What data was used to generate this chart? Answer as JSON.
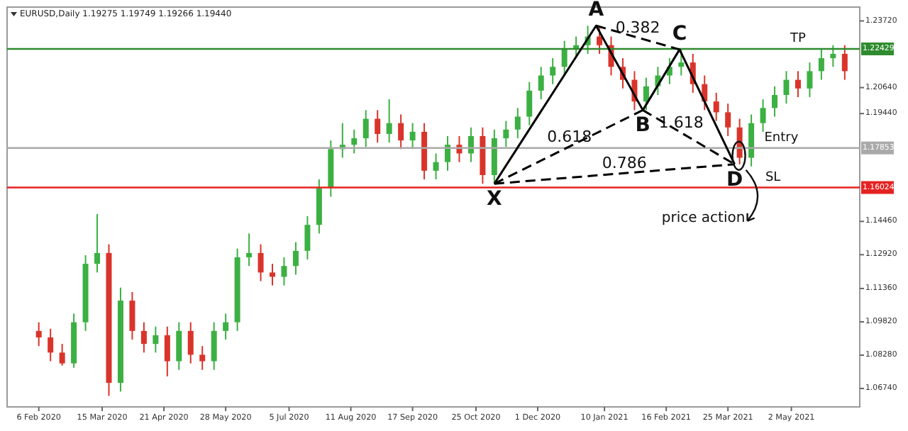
{
  "chart_data": {
    "type": "candlestick",
    "title": "EURUSD,Daily  1.19275 1.19749 1.19266 1.19440",
    "x": [
      "2020-02-06",
      "2020-02-13",
      "2020-02-20",
      "2020-02-27",
      "2020-03-05",
      "2020-03-12",
      "2020-03-19",
      "2020-03-26",
      "2020-04-02",
      "2020-04-09",
      "2020-04-16",
      "2020-04-23",
      "2020-04-30",
      "2020-05-07",
      "2020-05-14",
      "2020-05-21",
      "2020-05-28",
      "2020-06-04",
      "2020-06-11",
      "2020-06-18",
      "2020-06-25",
      "2020-07-02",
      "2020-07-09",
      "2020-07-16",
      "2020-07-23",
      "2020-07-30",
      "2020-08-06",
      "2020-08-13",
      "2020-08-20",
      "2020-08-27",
      "2020-09-03",
      "2020-09-10",
      "2020-09-17",
      "2020-09-24",
      "2020-10-01",
      "2020-10-08",
      "2020-10-15",
      "2020-10-22",
      "2020-10-29",
      "2020-11-05",
      "2020-11-12",
      "2020-11-19",
      "2020-11-26",
      "2020-12-03",
      "2020-12-10",
      "2020-12-17",
      "2020-12-24",
      "2020-12-31",
      "2021-01-07",
      "2021-01-14",
      "2021-01-21",
      "2021-01-28",
      "2021-02-04",
      "2021-02-11",
      "2021-02-18",
      "2021-02-25",
      "2021-03-04",
      "2021-03-11",
      "2021-03-18",
      "2021-03-25",
      "2021-04-01",
      "2021-04-08",
      "2021-04-15",
      "2021-04-22",
      "2021-04-29",
      "2021-05-06",
      "2021-05-13",
      "2021-05-20",
      "2021-05-27",
      "2021-06-03"
    ],
    "ohlc": [
      [
        1.094,
        1.098,
        1.087,
        1.091
      ],
      [
        1.091,
        1.095,
        1.08,
        1.084
      ],
      [
        1.084,
        1.088,
        1.078,
        1.079
      ],
      [
        1.079,
        1.102,
        1.077,
        1.098
      ],
      [
        1.098,
        1.129,
        1.094,
        1.125
      ],
      [
        1.125,
        1.148,
        1.121,
        1.13
      ],
      [
        1.13,
        1.134,
        1.064,
        1.07
      ],
      [
        1.07,
        1.114,
        1.066,
        1.108
      ],
      [
        1.108,
        1.112,
        1.09,
        1.094
      ],
      [
        1.094,
        1.098,
        1.084,
        1.088
      ],
      [
        1.088,
        1.096,
        1.084,
        1.092
      ],
      [
        1.092,
        1.096,
        1.073,
        1.08
      ],
      [
        1.08,
        1.098,
        1.076,
        1.094
      ],
      [
        1.094,
        1.098,
        1.079,
        1.083
      ],
      [
        1.083,
        1.087,
        1.076,
        1.08
      ],
      [
        1.08,
        1.098,
        1.076,
        1.094
      ],
      [
        1.094,
        1.102,
        1.09,
        1.098
      ],
      [
        1.098,
        1.132,
        1.094,
        1.128
      ],
      [
        1.128,
        1.139,
        1.124,
        1.13
      ],
      [
        1.13,
        1.134,
        1.117,
        1.121
      ],
      [
        1.121,
        1.125,
        1.115,
        1.119
      ],
      [
        1.119,
        1.128,
        1.115,
        1.124
      ],
      [
        1.124,
        1.135,
        1.12,
        1.131
      ],
      [
        1.131,
        1.147,
        1.127,
        1.143
      ],
      [
        1.143,
        1.164,
        1.139,
        1.16
      ],
      [
        1.16,
        1.182,
        1.156,
        1.178
      ],
      [
        1.178,
        1.19,
        1.174,
        1.18
      ],
      [
        1.18,
        1.187,
        1.176,
        1.183
      ],
      [
        1.183,
        1.196,
        1.179,
        1.192
      ],
      [
        1.192,
        1.196,
        1.181,
        1.185
      ],
      [
        1.185,
        1.201,
        1.181,
        1.19
      ],
      [
        1.19,
        1.194,
        1.178,
        1.182
      ],
      [
        1.182,
        1.19,
        1.178,
        1.186
      ],
      [
        1.186,
        1.19,
        1.164,
        1.168
      ],
      [
        1.168,
        1.176,
        1.164,
        1.172
      ],
      [
        1.172,
        1.184,
        1.168,
        1.18
      ],
      [
        1.18,
        1.184,
        1.172,
        1.176
      ],
      [
        1.176,
        1.188,
        1.172,
        1.184
      ],
      [
        1.184,
        1.188,
        1.162,
        1.166
      ],
      [
        1.166,
        1.187,
        1.162,
        1.183
      ],
      [
        1.183,
        1.191,
        1.179,
        1.187
      ],
      [
        1.187,
        1.197,
        1.183,
        1.193
      ],
      [
        1.193,
        1.209,
        1.189,
        1.205
      ],
      [
        1.205,
        1.216,
        1.201,
        1.212
      ],
      [
        1.212,
        1.22,
        1.208,
        1.216
      ],
      [
        1.216,
        1.228,
        1.212,
        1.224
      ],
      [
        1.224,
        1.23,
        1.22,
        1.226
      ],
      [
        1.226,
        1.235,
        1.222,
        1.23
      ],
      [
        1.23,
        1.234,
        1.222,
        1.226
      ],
      [
        1.226,
        1.23,
        1.212,
        1.216
      ],
      [
        1.216,
        1.22,
        1.206,
        1.21
      ],
      [
        1.21,
        1.214,
        1.196,
        1.2
      ],
      [
        1.2,
        1.211,
        1.196,
        1.207
      ],
      [
        1.207,
        1.216,
        1.203,
        1.212
      ],
      [
        1.212,
        1.22,
        1.208,
        1.216
      ],
      [
        1.216,
        1.224,
        1.212,
        1.218
      ],
      [
        1.218,
        1.222,
        1.204,
        1.208
      ],
      [
        1.208,
        1.212,
        1.196,
        1.2
      ],
      [
        1.2,
        1.204,
        1.191,
        1.195
      ],
      [
        1.195,
        1.199,
        1.184,
        1.188
      ],
      [
        1.188,
        1.192,
        1.171,
        1.174
      ],
      [
        1.174,
        1.194,
        1.17,
        1.19
      ],
      [
        1.19,
        1.201,
        1.186,
        1.197
      ],
      [
        1.197,
        1.207,
        1.193,
        1.203
      ],
      [
        1.203,
        1.214,
        1.199,
        1.21
      ],
      [
        1.21,
        1.214,
        1.202,
        1.206
      ],
      [
        1.206,
        1.218,
        1.202,
        1.214
      ],
      [
        1.214,
        1.224,
        1.21,
        1.22
      ],
      [
        1.22,
        1.226,
        1.216,
        1.222
      ],
      [
        1.222,
        1.226,
        1.21,
        1.214
      ]
    ],
    "series": [
      {
        "type": "line",
        "x": [
          "2020-11-05",
          "2021-01-05",
          "2021-02-02",
          "2021-02-24",
          "2021-03-29"
        ],
        "values": [
          1.162,
          1.235,
          1.196,
          1.224,
          1.171
        ],
        "color": "#000000",
        "line_style": "solid"
      },
      {
        "type": "line",
        "x": [
          "2020-11-05",
          "2021-02-02"
        ],
        "values": [
          1.162,
          1.196
        ],
        "color": "#000000",
        "line_style": "dashed"
      },
      {
        "type": "line",
        "x": [
          "2021-01-05",
          "2021-02-24"
        ],
        "values": [
          1.235,
          1.224
        ],
        "color": "#000000",
        "line_style": "dashed"
      },
      {
        "type": "line",
        "x": [
          "2021-02-02",
          "2021-03-29"
        ],
        "values": [
          1.196,
          1.171
        ],
        "color": "#000000",
        "line_style": "dashed"
      },
      {
        "type": "line",
        "x": [
          "2020-11-05",
          "2021-03-29"
        ],
        "values": [
          1.162,
          1.171
        ],
        "color": "#000000",
        "line_style": "dashed"
      }
    ],
    "xlim": [
      "2020-01-18",
      "2021-06-12"
    ],
    "xticks": [
      {
        "value": "2020-02-06",
        "label": "6 Feb 2020"
      },
      {
        "value": "2020-03-15",
        "label": "15 Mar 2020"
      },
      {
        "value": "2020-04-21",
        "label": "21 Apr 2020"
      },
      {
        "value": "2020-05-28",
        "label": "28 May 2020"
      },
      {
        "value": "2020-07-05",
        "label": "5 Jul 2020"
      },
      {
        "value": "2020-08-11",
        "label": "11 Aug 2020"
      },
      {
        "value": "2020-09-17",
        "label": "17 Sep 2020"
      },
      {
        "value": "2020-10-25",
        "label": "25 Oct 2020"
      },
      {
        "value": "2020-12-01",
        "label": "1 Dec 2020"
      },
      {
        "value": "2021-01-10",
        "label": "10 Jan 2021"
      },
      {
        "value": "2021-02-16",
        "label": "16 Feb 2021"
      },
      {
        "value": "2021-03-25",
        "label": "25 Mar 2021"
      },
      {
        "value": "2021-05-02",
        "label": "2 May 2021"
      }
    ],
    "ylim": [
      1.0589,
      1.2436
    ],
    "yticks": [
      {
        "value": 1.2372,
        "label": "1.23720"
      },
      {
        "value": 1.2064,
        "label": "1.20640"
      },
      {
        "value": 1.1944,
        "label": "1.19440"
      },
      {
        "value": 1.1446,
        "label": "1.14460"
      },
      {
        "value": 1.1292,
        "label": "1.12920"
      },
      {
        "value": 1.1136,
        "label": "1.11360"
      },
      {
        "value": 1.0982,
        "label": "1.09820"
      },
      {
        "value": 1.0828,
        "label": "1.08280"
      },
      {
        "value": 1.0674,
        "label": "1.06740"
      }
    ],
    "ref_lines": [
      {
        "axis": "y",
        "value": 1.22429,
        "label": "1.22429",
        "color": "#2e8b2e"
      },
      {
        "axis": "y",
        "value": 1.17853,
        "label": "1.17853",
        "color": "#a9a9a9"
      },
      {
        "axis": "y",
        "value": 1.16024,
        "label": "1.16024",
        "color": "#e52222"
      }
    ],
    "annotations": [
      {
        "text": "X",
        "x": "2020-11-05",
        "y": 1.162
      },
      {
        "text": "A",
        "x": "2021-01-05",
        "y": 1.235
      },
      {
        "text": "B",
        "x": "2021-02-02",
        "y": 1.196
      },
      {
        "text": "C",
        "x": "2021-02-24",
        "y": 1.224
      },
      {
        "text": "D",
        "x": "2021-03-29",
        "y": 1.171
      },
      {
        "text": "0.382",
        "x": "2021-01-30",
        "y": 1.2295
      },
      {
        "text": "0.618",
        "x": "2020-12-20",
        "y": 1.1792
      },
      {
        "text": "1.618",
        "x": "2021-02-25",
        "y": 1.1855
      },
      {
        "text": "0.786",
        "x": "2021-01-22",
        "y": 1.1669
      },
      {
        "text": "TP",
        "x": "2021-05-06",
        "y": 1.22429
      },
      {
        "text": "Entry",
        "x": "2021-04-26",
        "y": 1.17853
      },
      {
        "text": "SL",
        "x": "2021-04-21",
        "y": 1.16024
      },
      "price action"
    ]
  }
}
